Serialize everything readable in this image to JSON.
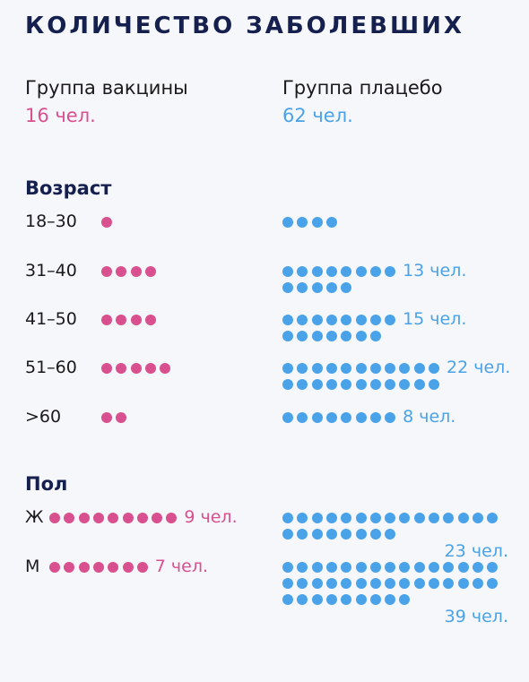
{
  "title": "КОЛИЧЕСТВО ЗАБОЛЕВШИХ",
  "groups": {
    "vaccine": {
      "name": "Группа вакцины",
      "count": "16 чел.",
      "color": "#d9508f"
    },
    "placebo": {
      "name": "Группа плацебо",
      "count": "62 чел.",
      "color": "#4aa3e8"
    }
  },
  "sections": {
    "age": "Возраст",
    "sex": "Пол"
  },
  "chart_data": {
    "type": "dot-matrix",
    "unit": "чел.",
    "age": [
      {
        "label": "18–30",
        "vaccine": 1,
        "placebo": 4,
        "placebo_label": ""
      },
      {
        "label": "31–40",
        "vaccine": 4,
        "placebo": 13,
        "placebo_label": "13 чел."
      },
      {
        "label": "41–50",
        "vaccine": 4,
        "placebo": 15,
        "placebo_label": "15 чел."
      },
      {
        "label": "51–60",
        "vaccine": 5,
        "placebo": 22,
        "placebo_label": "22 чел."
      },
      {
        "label": ">60",
        "vaccine": 2,
        "placebo": 8,
        "placebo_label": "8 чел."
      }
    ],
    "sex": [
      {
        "label": "Ж",
        "vaccine": 9,
        "vaccine_label": "9 чел.",
        "placebo": 23,
        "placebo_label": "23 чел."
      },
      {
        "label": "М",
        "vaccine": 7,
        "vaccine_label": "7 чел.",
        "placebo": 39,
        "placebo_label": "39 чел."
      }
    ]
  }
}
